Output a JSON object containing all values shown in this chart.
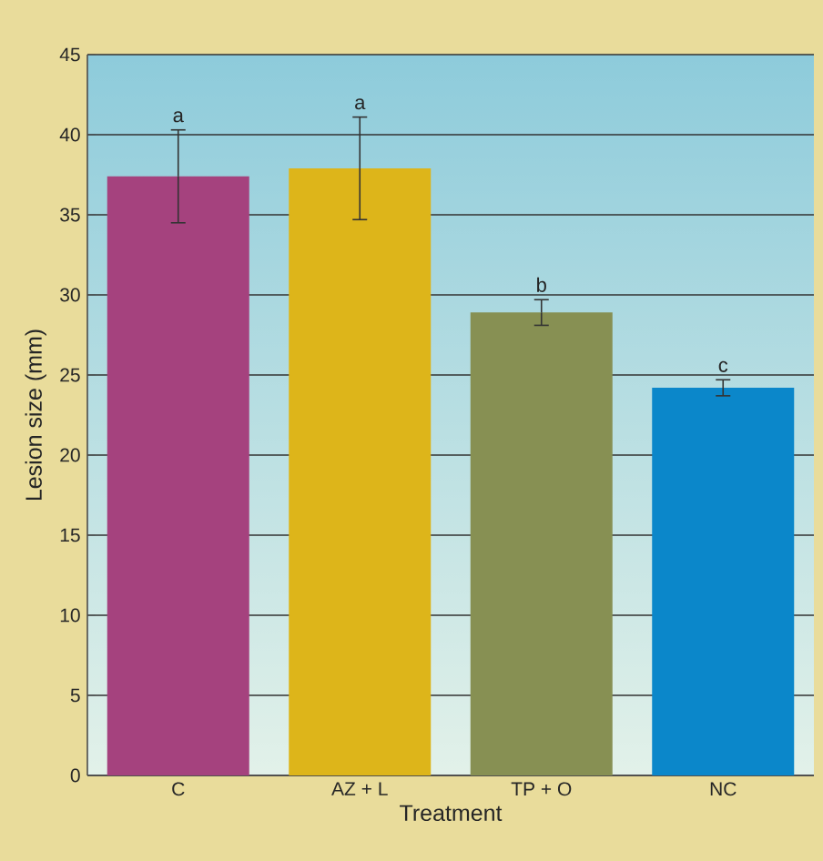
{
  "chart_data": {
    "type": "bar",
    "xlabel": "Treatment",
    "ylabel": "Lesion size (mm)",
    "categories": [
      "C",
      "AZ + L",
      "TP + O",
      "NC"
    ],
    "values": [
      37.4,
      37.9,
      28.9,
      24.2
    ],
    "errors": [
      2.9,
      3.2,
      0.8,
      0.5
    ],
    "colors": [
      "#a5427e",
      "#ddb51a",
      "#879053",
      "#0b87ca"
    ],
    "ylim": [
      0,
      45
    ],
    "yticks": [
      0,
      5,
      10,
      15,
      20,
      25,
      30,
      35,
      40,
      45
    ],
    "grid": "y",
    "annotations": [
      {
        "text": "a",
        "x": "C",
        "y": 40.3
      },
      {
        "text": "a",
        "x": "AZ + L",
        "y": 41.1
      },
      {
        "text": "b",
        "x": "TP + O",
        "y": 29.7
      },
      {
        "text": "c",
        "x": "NC",
        "y": 24.7
      }
    ]
  }
}
